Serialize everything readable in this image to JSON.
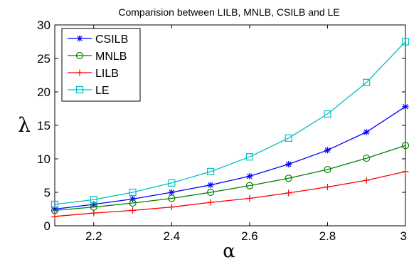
{
  "chart_data": {
    "type": "line",
    "title": "Comparision between LILB, MNLB, CSILB and LE",
    "xlabel": "α",
    "ylabel": "λ",
    "xlim": [
      2.1,
      3.0
    ],
    "ylim": [
      0,
      30
    ],
    "xticks": [
      "2.2",
      "2.4",
      "2.6",
      "2.8",
      "3"
    ],
    "xtick_values": [
      2.2,
      2.4,
      2.6,
      2.8,
      3.0
    ],
    "yticks": [
      "0",
      "5",
      "10",
      "15",
      "20",
      "25",
      "30"
    ],
    "ytick_values": [
      0,
      5,
      10,
      15,
      20,
      25,
      30
    ],
    "grid": false,
    "legend_position": "top-left",
    "x": [
      2.1,
      2.2,
      2.3,
      2.4,
      2.5,
      2.6,
      2.7,
      2.8,
      2.9,
      3.0
    ],
    "series": [
      {
        "name": "CSILB",
        "color": "#0000ff",
        "marker": "star",
        "values": [
          2.5,
          3.2,
          4.0,
          5.0,
          6.1,
          7.4,
          9.2,
          11.3,
          14.0,
          17.8
        ]
      },
      {
        "name": "MNLB",
        "color": "#008000",
        "marker": "circle",
        "values": [
          2.3,
          2.8,
          3.4,
          4.1,
          5.0,
          6.0,
          7.1,
          8.4,
          10.1,
          12.0
        ]
      },
      {
        "name": "LILB",
        "color": "#ff0000",
        "marker": "plus",
        "values": [
          1.4,
          1.9,
          2.3,
          2.8,
          3.5,
          4.1,
          4.9,
          5.8,
          6.8,
          8.1
        ]
      },
      {
        "name": "LE",
        "color": "#00bfbf",
        "marker": "square",
        "values": [
          3.2,
          3.9,
          5.0,
          6.4,
          8.1,
          10.3,
          13.1,
          16.7,
          21.4,
          27.5
        ]
      }
    ]
  }
}
